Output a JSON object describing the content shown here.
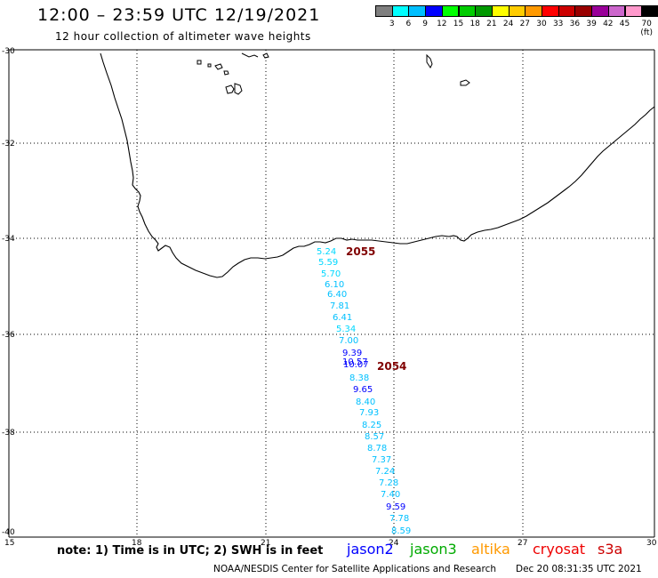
{
  "title": "12:00 – 23:59 UTC 12/19/2021",
  "subtitle": "12 hour collection of altimeter wave heights",
  "legend": {
    "colors": [
      "#7f7f7f",
      "#00ffff",
      "#00bfff",
      "#0000ff",
      "#00ff00",
      "#00cc00",
      "#009900",
      "#ffff00",
      "#ffcc00",
      "#ff9900",
      "#ff0000",
      "#cc0000",
      "#990000",
      "#990099",
      "#cc66cc",
      "#ff99cc",
      "#000000"
    ],
    "labels": [
      "3",
      "6",
      "9",
      "12",
      "15",
      "18",
      "21",
      "24",
      "27",
      "30",
      "33",
      "36",
      "39",
      "42",
      "45",
      "70 (ft)"
    ]
  },
  "axes": {
    "lat_labels": [
      "-30",
      "-32",
      "-34",
      "-36",
      "-38",
      "-40"
    ],
    "lon_labels": [
      "15",
      "18",
      "21",
      "24",
      "27",
      "30"
    ]
  },
  "track_values": [
    {
      "v": "5.24",
      "c": "#00d8ff"
    },
    {
      "v": "5.59",
      "c": "#00d8ff"
    },
    {
      "v": "5.70",
      "c": "#00d8ff"
    },
    {
      "v": "6.10",
      "c": "#00c0ff"
    },
    {
      "v": "6.40",
      "c": "#00c0ff"
    },
    {
      "v": "7.81",
      "c": "#00c0ff"
    },
    {
      "v": "6.41",
      "c": "#00c0ff"
    },
    {
      "v": "5.34",
      "c": "#00d8ff"
    },
    {
      "v": "7.00",
      "c": "#00c0ff"
    },
    {
      "v": "9.39",
      "c": "#0000ff"
    },
    {
      "v": "10.57",
      "c": "#0000ff"
    },
    {
      "v": "10.07",
      "c": "#0000ff"
    },
    {
      "v": "8.38",
      "c": "#00c0ff"
    },
    {
      "v": "9.65",
      "c": "#0000ff"
    },
    {
      "v": "8.40",
      "c": "#00c0ff"
    },
    {
      "v": "7.93",
      "c": "#00c0ff"
    },
    {
      "v": "8.25",
      "c": "#00c0ff"
    },
    {
      "v": "8.57",
      "c": "#00c0ff"
    },
    {
      "v": "8.78",
      "c": "#00c0ff"
    },
    {
      "v": "7.37",
      "c": "#00c0ff"
    },
    {
      "v": "7.24",
      "c": "#00c0ff"
    },
    {
      "v": "7.28",
      "c": "#00c0ff"
    },
    {
      "v": "7.40",
      "c": "#00c0ff"
    },
    {
      "v": "9.59",
      "c": "#0000ff"
    },
    {
      "v": "7.78",
      "c": "#00c0ff"
    },
    {
      "v": "8.59",
      "c": "#00c0ff"
    }
  ],
  "time_labels": [
    {
      "text": "2055",
      "color": "#800000"
    },
    {
      "text": "2054",
      "color": "#800000"
    }
  ],
  "note": "note:  1) Time is in UTC;  2) SWH is in feet",
  "missions": [
    {
      "name": "jason2",
      "color": "#0000ff"
    },
    {
      "name": "jason3",
      "color": "#00aa00"
    },
    {
      "name": "altika",
      "color": "#ff9900"
    },
    {
      "name": "cryosat",
      "color": "#ee0000"
    },
    {
      "name": "s3a",
      "color": "#cc0000"
    }
  ],
  "credit": "NOAA/NESDIS Center for Satellite Applications and Research",
  "timestamp": "Dec 20 08:31:35 UTC 2021"
}
